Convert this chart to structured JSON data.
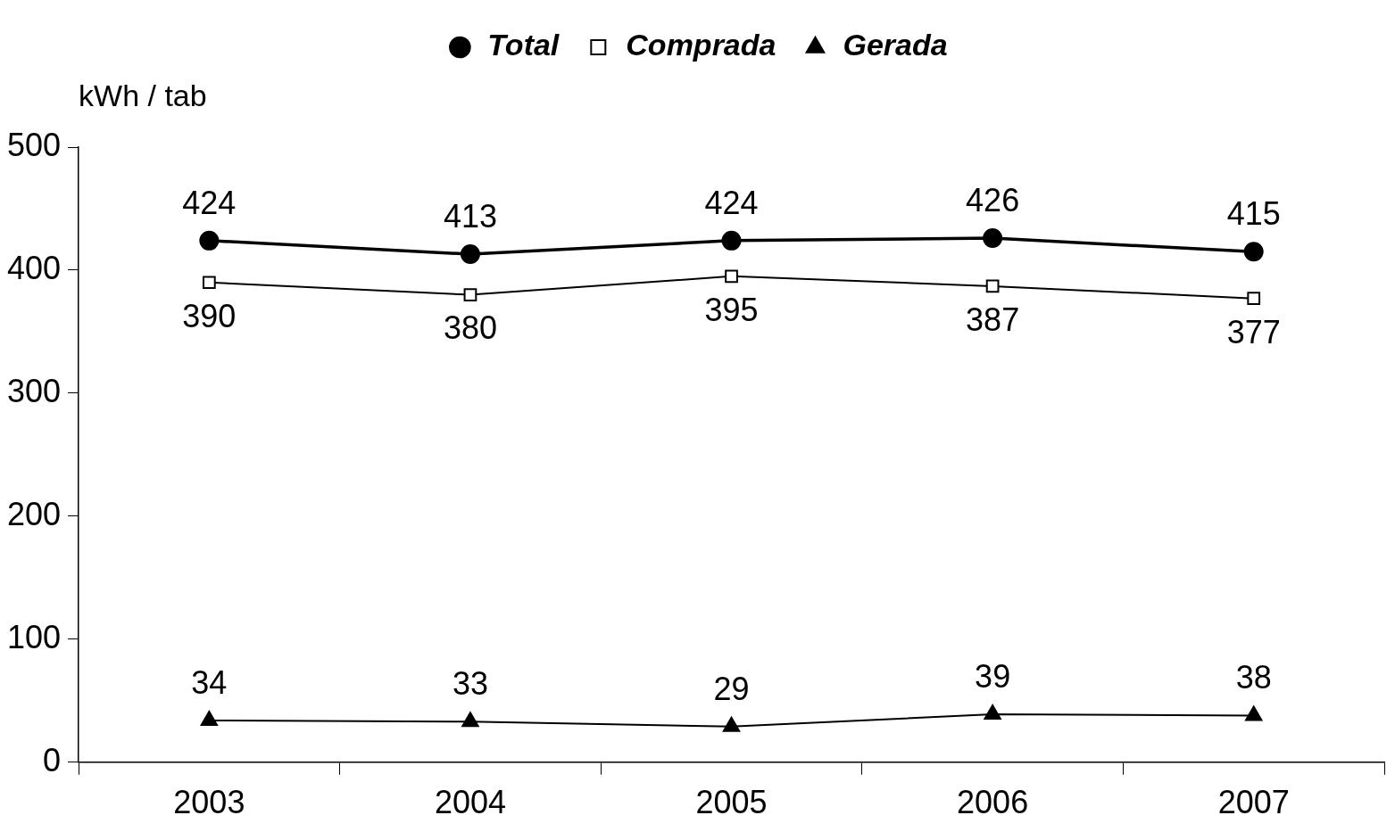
{
  "chart_data": {
    "type": "line",
    "ylabel": "kWh / tab",
    "categories": [
      "2003",
      "2004",
      "2005",
      "2006",
      "2007"
    ],
    "series": [
      {
        "name": "Total",
        "color": "#000000",
        "marker": "circle",
        "values": [
          424,
          413,
          424,
          426,
          415
        ]
      },
      {
        "name": "Comprada",
        "color": "#000000",
        "marker": "square",
        "values": [
          390,
          380,
          395,
          387,
          377
        ]
      },
      {
        "name": "Gerada",
        "color": "#000000",
        "marker": "triangle",
        "values": [
          34,
          33,
          29,
          39,
          38
        ]
      }
    ],
    "ylim": [
      0,
      500
    ],
    "yticks": [
      0,
      100,
      200,
      300,
      400,
      500
    ],
    "grid": false,
    "legend": "top",
    "data_labels": true,
    "line_style": "solid"
  }
}
